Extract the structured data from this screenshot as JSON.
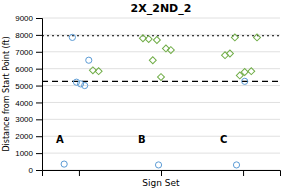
{
  "chart_data": {
    "type": "scatter",
    "title": "2X_2ND_2",
    "x_label": "Sign Set",
    "y_label": "Distance from Start Point (ft)",
    "xlim": [
      0.55,
      3.45
    ],
    "xticks": [
      1,
      2,
      3
    ],
    "ylim": [
      0,
      9000
    ],
    "yticks": [
      0,
      1000,
      2000,
      3000,
      4000,
      5000,
      6000,
      7000,
      8000,
      9000
    ],
    "tick_labels": "y",
    "grid": "y",
    "series": [
      {
        "color": "#5b9bd5",
        "marker": "circle",
        "x": [
          0.82,
          0.92,
          0.97,
          1.02,
          1.07,
          1.12,
          1.97,
          2.92,
          3.02
        ],
        "values": [
          350,
          7850,
          5200,
          5100,
          5000,
          6500,
          300,
          300,
          5250
        ]
      },
      {
        "color": "#70ad47",
        "marker": "diamond",
        "x": [
          1.17,
          1.24,
          1.78,
          1.85,
          1.9,
          1.95,
          2.0,
          2.06,
          2.12,
          2.78,
          2.84,
          2.9,
          2.96,
          3.02,
          3.1,
          3.17
        ],
        "values": [
          5900,
          5850,
          7800,
          7750,
          6500,
          7700,
          5500,
          7200,
          7100,
          6800,
          6900,
          7850,
          5600,
          5800,
          5850,
          7850
        ]
      }
    ],
    "reference_lines": [
      {
        "y": 7950,
        "line_style": "dotted",
        "color": "black"
      },
      {
        "y": 5250,
        "line_style": "dashed",
        "color": "black"
      }
    ],
    "annotations": [
      {
        "text": "A",
        "x": 0.72,
        "y": 1800
      },
      {
        "text": "B",
        "x": 1.72,
        "y": 1800
      },
      {
        "text": "C",
        "x": 2.72,
        "y": 1800
      }
    ]
  }
}
